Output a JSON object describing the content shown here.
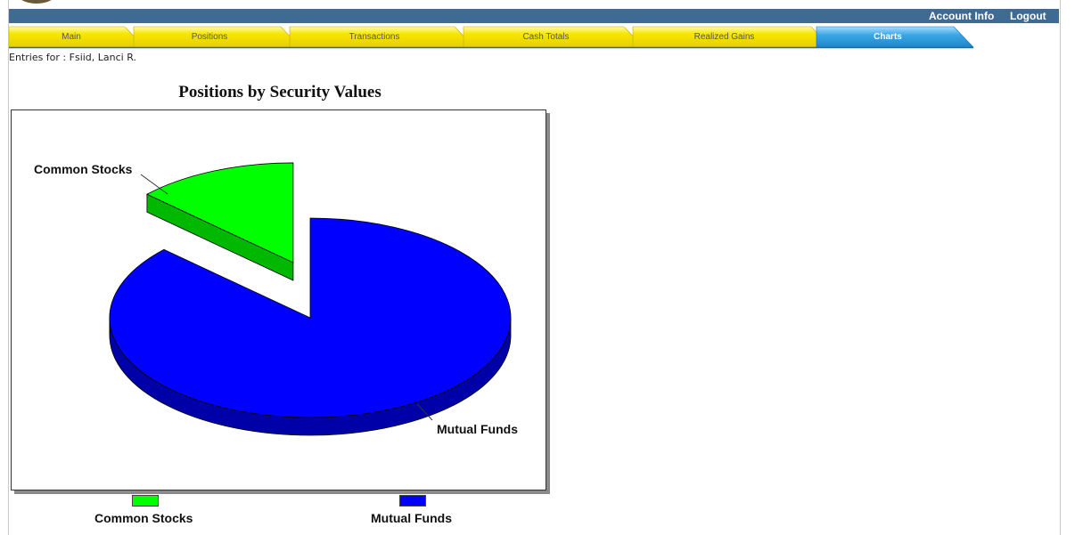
{
  "header": {
    "links": [
      "Account Info",
      "Logout"
    ],
    "color": "#3f6a94"
  },
  "tabs": [
    {
      "label": "Main",
      "active": false
    },
    {
      "label": "Positions",
      "active": false
    },
    {
      "label": "Transactions",
      "active": false
    },
    {
      "label": "Cash Totals",
      "active": false
    },
    {
      "label": "Realized Gains",
      "active": false
    },
    {
      "label": "Charts",
      "active": true
    }
  ],
  "tab_colors": {
    "inactive": "#f5e000",
    "active": "#3ba7e6"
  },
  "entries": {
    "prefix": "Entries for : ",
    "name": "Fsiid, Lanci R."
  },
  "chart_data": {
    "type": "pie",
    "title": "Positions by Security Values",
    "slices": [
      {
        "label": "Common Stocks",
        "value": 13,
        "color": "#00ff00",
        "exploded": true
      },
      {
        "label": "Mutual Funds",
        "value": 87,
        "color": "#0000ff",
        "exploded": false
      }
    ],
    "legend": [
      "Common Stocks",
      "Mutual Funds"
    ],
    "legend_position": "bottom"
  }
}
